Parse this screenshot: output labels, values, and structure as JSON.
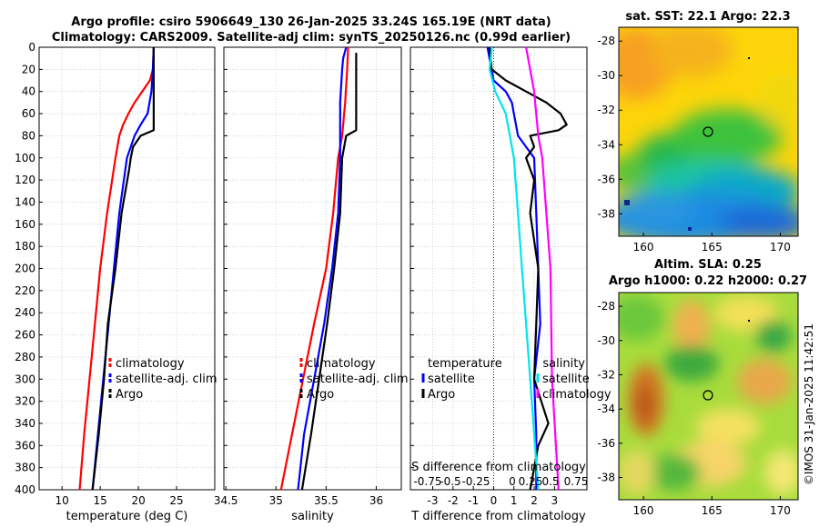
{
  "title": {
    "line1": "Argo profile: csiro 5906649_130 26-Jan-2025 33.24S 165.19E (NRT data)",
    "line2": "Climatology: CARS2009. Satellite-adj clim: synTS_20250126.nc (0.99d earlier)"
  },
  "colors": {
    "climatology": "#ff0000",
    "satellite": "#0000ff",
    "argo": "#000000",
    "salinity_satellite": "#00e5ee",
    "salinity_climatology": "#ff00ff"
  },
  "chart_data": [
    {
      "id": "temperature",
      "type": "line",
      "xlabel": "temperature (deg C)",
      "xlim": [
        7,
        30
      ],
      "xticks": [
        10,
        15,
        20,
        25
      ],
      "ylim": [
        400,
        0
      ],
      "yticks": [
        0,
        20,
        40,
        60,
        80,
        100,
        120,
        140,
        160,
        180,
        200,
        220,
        240,
        260,
        280,
        300,
        320,
        340,
        360,
        380,
        400
      ],
      "grid": true,
      "legend": {
        "position": "lower-right",
        "entries": [
          "climatology",
          "satellite-adj. clim",
          "Argo"
        ]
      },
      "series": [
        {
          "name": "climatology",
          "color": "#ff0000",
          "depth": [
            0,
            20,
            30,
            40,
            50,
            60,
            70,
            80,
            100,
            150,
            200,
            250,
            300,
            350,
            400
          ],
          "values": [
            22.0,
            21.9,
            21.5,
            20.5,
            19.5,
            18.7,
            18.0,
            17.5,
            17.0,
            15.9,
            15.0,
            14.3,
            13.6,
            12.9,
            12.3
          ]
        },
        {
          "name": "satellite-adj. clim",
          "color": "#0000ff",
          "depth": [
            0,
            20,
            40,
            60,
            70,
            80,
            90,
            100,
            150,
            200,
            250,
            300,
            350,
            400
          ],
          "values": [
            22.0,
            21.9,
            21.7,
            21.2,
            20.3,
            19.5,
            19.0,
            18.5,
            17.5,
            16.8,
            16.1,
            15.4,
            14.7,
            14.0
          ]
        },
        {
          "name": "Argo",
          "color": "#000000",
          "depth": [
            0,
            20,
            40,
            60,
            75,
            80,
            90,
            100,
            110,
            150,
            200,
            250,
            300,
            350,
            400
          ],
          "values": [
            22.0,
            22.0,
            22.0,
            22.0,
            22.0,
            20.3,
            19.3,
            19.0,
            18.8,
            17.8,
            17.0,
            16.0,
            15.5,
            14.8,
            14.0
          ]
        }
      ]
    },
    {
      "id": "salinity",
      "type": "line",
      "xlabel": "salinity",
      "xlim": [
        34.48,
        36.25
      ],
      "xticks": [
        34.5,
        35,
        35.5,
        36
      ],
      "ylim": [
        400,
        0
      ],
      "grid": true,
      "legend": {
        "position": "lower-right",
        "entries": [
          "climatology",
          "satellite-adj. clim",
          "Argo"
        ]
      },
      "series": [
        {
          "name": "climatology",
          "color": "#ff0000",
          "depth": [
            0,
            20,
            50,
            80,
            100,
            150,
            200,
            250,
            300,
            350,
            400
          ],
          "values": [
            35.72,
            35.71,
            35.69,
            35.66,
            35.62,
            35.57,
            35.5,
            35.38,
            35.27,
            35.16,
            35.05
          ]
        },
        {
          "name": "satellite-adj. clim",
          "color": "#0000ff",
          "depth": [
            0,
            10,
            20,
            50,
            80,
            100,
            150,
            200,
            250,
            300,
            350,
            400
          ],
          "values": [
            35.7,
            35.67,
            35.66,
            35.64,
            35.64,
            35.64,
            35.62,
            35.56,
            35.48,
            35.38,
            35.28,
            35.22
          ]
        },
        {
          "name": "Argo",
          "color": "#000000",
          "depth": [
            5,
            10,
            20,
            50,
            75,
            80,
            100,
            150,
            200,
            250,
            300,
            350,
            400
          ],
          "values": [
            35.8,
            35.8,
            35.8,
            35.8,
            35.8,
            35.7,
            35.66,
            35.64,
            35.58,
            35.51,
            35.43,
            35.35,
            35.26
          ]
        }
      ]
    },
    {
      "id": "difference",
      "type": "line",
      "xlabel": "T difference from climatology",
      "xlabel2": "S difference from climatology",
      "xlim": [
        -4.1,
        4.6
      ],
      "xticks": [
        -3,
        -2,
        -1,
        0,
        1,
        2,
        3
      ],
      "x2ticklabels": [
        "-0.75",
        "-0.5",
        "-0.25",
        "0",
        "0.25",
        "0.5",
        "0.75"
      ],
      "ylim": [
        400,
        0
      ],
      "grid": true,
      "legend_t": {
        "heading": "temperature",
        "entries": [
          "satellite",
          "Argo"
        ]
      },
      "legend_s": {
        "heading": "salinity",
        "entries": [
          "satellite",
          "climatology"
        ]
      },
      "series": [
        {
          "name": "T satellite",
          "color": "#0000ff",
          "depth": [
            0,
            30,
            40,
            50,
            60,
            70,
            80,
            90,
            100,
            150,
            200,
            250,
            300,
            350,
            400
          ],
          "values": [
            -0.3,
            0.0,
            0.6,
            0.9,
            1.0,
            1.1,
            1.2,
            1.6,
            2.0,
            2.1,
            2.2,
            2.3,
            2.0,
            2.1,
            2.1
          ]
        },
        {
          "name": "T Argo",
          "color": "#000000",
          "depth": [
            0,
            20,
            30,
            40,
            50,
            60,
            70,
            75,
            80,
            90,
            100,
            120,
            150,
            200,
            250,
            300,
            340,
            360,
            400
          ],
          "values": [
            -0.2,
            -0.1,
            0.6,
            1.6,
            2.6,
            3.3,
            3.6,
            3.2,
            1.8,
            2.0,
            1.6,
            2.0,
            1.8,
            2.2,
            2.1,
            2.0,
            2.7,
            2.2,
            1.8
          ]
        },
        {
          "name": "S satellite",
          "color": "#00e5ee",
          "depth": [
            0,
            20,
            40,
            60,
            100,
            150,
            200,
            300,
            400
          ],
          "values": [
            -0.02,
            -0.05,
            0.02,
            0.15,
            0.25,
            0.3,
            0.35,
            0.45,
            0.55
          ]
        },
        {
          "name": "S climatology",
          "color": "#ff00ff",
          "depth": [
            0,
            40,
            80,
            100,
            150,
            200,
            300,
            400
          ],
          "values": [
            0.4,
            0.5,
            0.55,
            0.6,
            0.65,
            0.7,
            0.72,
            0.8
          ]
        }
      ]
    }
  ],
  "map_sst": {
    "title": "sat. SST: 22.1 Argo: 22.3",
    "yticks": [
      "-28",
      "-30",
      "-32",
      "-34",
      "-36",
      "-38"
    ],
    "xticks": [
      "160",
      "165",
      "170"
    ],
    "extent": {
      "lon": [
        158.2,
        171.3
      ],
      "lat": [
        -39.3,
        -27.2
      ]
    },
    "marker": {
      "lon": 165.19,
      "lat": -33.24
    }
  },
  "map_sla": {
    "title1": "Altim. SLA: 0.25",
    "title2": "Argo h1000: 0.22 h2000: 0.27",
    "yticks": [
      "-28",
      "-30",
      "-32",
      "-34",
      "-36",
      "-38"
    ],
    "xticks": [
      "160",
      "165",
      "170"
    ],
    "extent": {
      "lon": [
        158.2,
        171.3
      ],
      "lat": [
        -39.3,
        -27.2
      ]
    },
    "marker": {
      "lon": 165.19,
      "lat": -33.24
    }
  },
  "credit": "©IMOS 31-Jan-2025 11:42:51"
}
